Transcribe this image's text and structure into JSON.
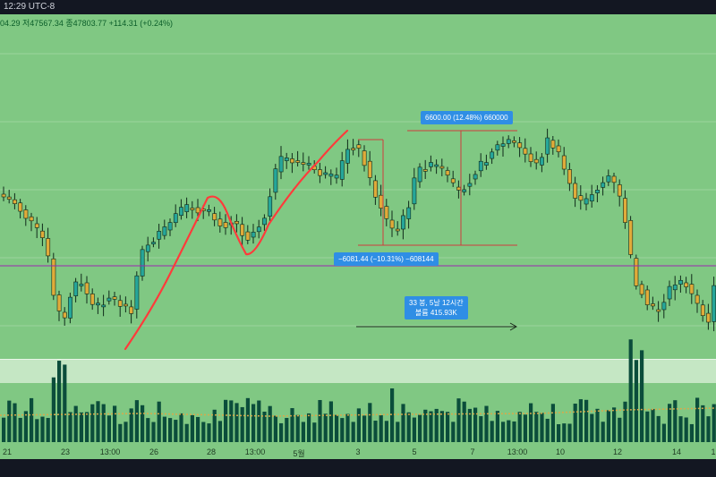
{
  "header": {
    "time": "12:29 UTC-8"
  },
  "ohlc": {
    "text": "04.29  저47567.34  종47803.77  +114.31 (+0.24%)"
  },
  "measure_price": {
    "text": "6600.00 (12.48%) 660000"
  },
  "measure_drop": {
    "text": "−6081.44 (−10.31%) −608144"
  },
  "measure_range": {
    "line1": "33 봉, 5날 12시간",
    "line2": "볼륨 415.93K"
  },
  "xaxis": {
    "labels": [
      {
        "text": "21",
        "x": 8
      },
      {
        "text": "23",
        "x": 73
      },
      {
        "text": "13:00",
        "x": 123
      },
      {
        "text": "26",
        "x": 172
      },
      {
        "text": "28",
        "x": 236
      },
      {
        "text": "13:00",
        "x": 285
      },
      {
        "text": "5월",
        "x": 334
      },
      {
        "text": "3",
        "x": 400
      },
      {
        "text": "5",
        "x": 463
      },
      {
        "text": "7",
        "x": 528
      },
      {
        "text": "13:00",
        "x": 578
      },
      {
        "text": "10",
        "x": 626
      },
      {
        "text": "12",
        "x": 690
      },
      {
        "text": "14",
        "x": 756
      },
      {
        "text": "1",
        "x": 797
      }
    ]
  },
  "colors": {
    "up": "#26a69a",
    "down": "#e0ab3a",
    "volume": "#0b4d3b",
    "highlight": "#ff3b3b",
    "hline": "#9c27b0"
  }
}
